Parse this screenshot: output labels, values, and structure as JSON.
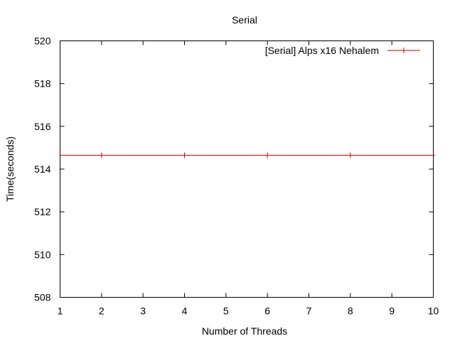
{
  "chart_data": {
    "type": "line",
    "title": "Serial",
    "xlabel": "Number of Threads",
    "ylabel": "Time(seconds)",
    "xlim": [
      1,
      10
    ],
    "ylim": [
      508,
      520
    ],
    "xticks": [
      1,
      2,
      3,
      4,
      5,
      6,
      7,
      8,
      9,
      10
    ],
    "yticks": [
      508,
      510,
      512,
      514,
      516,
      518,
      520
    ],
    "grid": false,
    "legend_position": "top-right",
    "series": [
      {
        "name": "[Serial] Alps x16 Nehalem",
        "color": "#cc0000",
        "marker": "plus",
        "x": [
          2,
          4,
          6,
          8
        ],
        "y": [
          514.65,
          514.65,
          514.65,
          514.65
        ],
        "extends_full_width": true
      }
    ]
  }
}
